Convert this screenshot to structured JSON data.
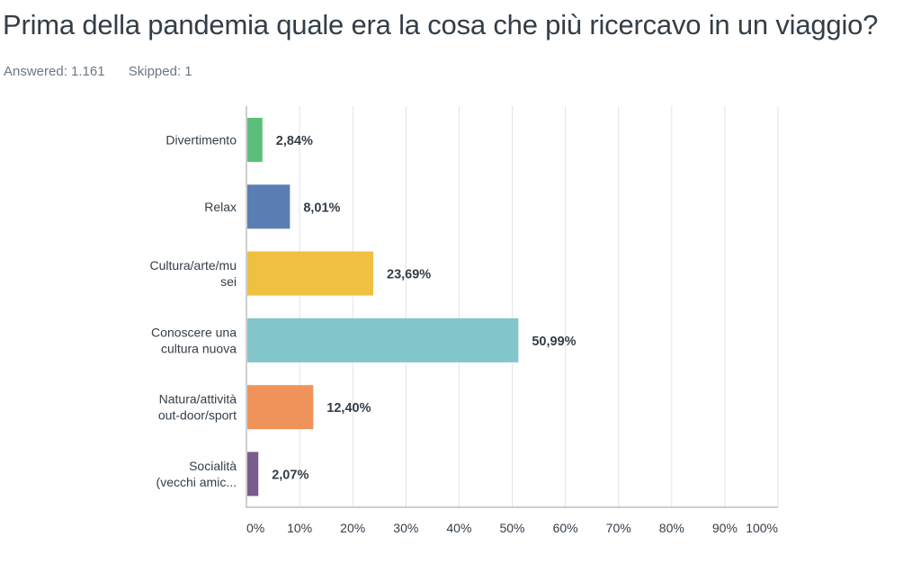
{
  "question": {
    "title": "Prima della pandemia quale era la cosa che più ricercavo in un viaggio?",
    "answered": "Answered: 1.161",
    "skipped": "Skipped: 1"
  },
  "chart_data": {
    "type": "bar",
    "orientation": "horizontal",
    "categories": [
      [
        "Divertimento"
      ],
      [
        "Relax"
      ],
      [
        "Cultura/arte/mu",
        "sei"
      ],
      [
        "Conoscere una",
        "cultura nuova"
      ],
      [
        "Natura/attività",
        "out-door/sport"
      ],
      [
        "Socialità",
        "(vecchi amic..."
      ]
    ],
    "values": [
      2.84,
      8.01,
      23.69,
      50.99,
      12.4,
      2.07
    ],
    "value_labels": [
      "2,84%",
      "8,01%",
      "23,69%",
      "50,99%",
      "12,40%",
      "2,07%"
    ],
    "colors": [
      "#5bbf7a",
      "#5a7db4",
      "#f0c040",
      "#82c6cc",
      "#f0935b",
      "#7a5c8c"
    ],
    "xlim": [
      0,
      100
    ],
    "ticks": [
      "0%",
      "10%",
      "20%",
      "30%",
      "40%",
      "50%",
      "60%",
      "70%",
      "80%",
      "90%",
      "100%"
    ],
    "grid": true
  }
}
